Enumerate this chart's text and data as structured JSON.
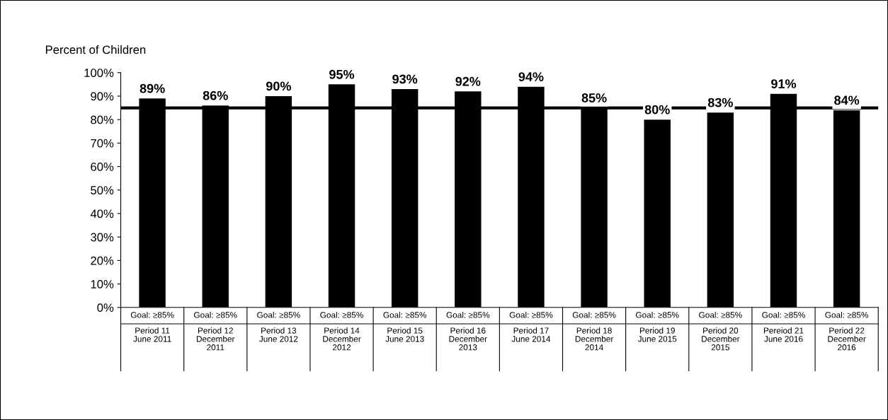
{
  "chart_data": {
    "type": "bar",
    "ylabel": "Percent of Children",
    "categories": [
      "Goal: ≥85%\nPeriod 11\nJune 2011",
      "Goal: ≥85%\nPeriod 12\nDecember\n2011",
      "Goal: ≥85%\nPeriod 13\nJune 2012",
      "Goal: ≥85%\nPeriod 14\nDecember\n2012",
      "Goal: ≥85%\nPeriod 15\nJune 2013",
      "Goal: ≥85%\nPeriod 16\nDecember\n2013",
      "Goal: ≥85%\nPeriod 17\nJune 2014",
      "Goal: ≥85%\nPeriod 18\nDecember\n2014",
      "Goal: ≥85%\nPeriod 19\nJune 2015",
      "Goal: ≥85%\nPeriod 20\nDecember\n2015",
      "Goal: ≥85%\nPereiod 21\nJune 2016",
      "Goal: ≥85%\nPeriod 22\nDecember\n2016"
    ],
    "values": [
      89,
      86,
      90,
      95,
      93,
      92,
      94,
      85,
      80,
      83,
      91,
      84
    ],
    "value_labels": [
      "89%",
      "86%",
      "90%",
      "95%",
      "93%",
      "92%",
      "94%",
      "85%",
      "80%",
      "83%",
      "91%",
      "84%"
    ],
    "color": "#000000",
    "ylim": [
      0,
      100
    ],
    "yticks": [
      {
        "value": 0,
        "label": "0%"
      },
      {
        "value": 10,
        "label": "10%"
      },
      {
        "value": 20,
        "label": "20%"
      },
      {
        "value": 30,
        "label": "30%"
      },
      {
        "value": 40,
        "label": "40%"
      },
      {
        "value": 50,
        "label": "50%"
      },
      {
        "value": 60,
        "label": "60%"
      },
      {
        "value": 70,
        "label": "70%"
      },
      {
        "value": 80,
        "label": "80%"
      },
      {
        "value": 90,
        "label": "90%"
      },
      {
        "value": 100,
        "label": "100%"
      }
    ],
    "ref_lines": [
      {
        "axis": "y",
        "value": 85,
        "color": "#000000"
      }
    ],
    "grid": false,
    "legend": false
  }
}
